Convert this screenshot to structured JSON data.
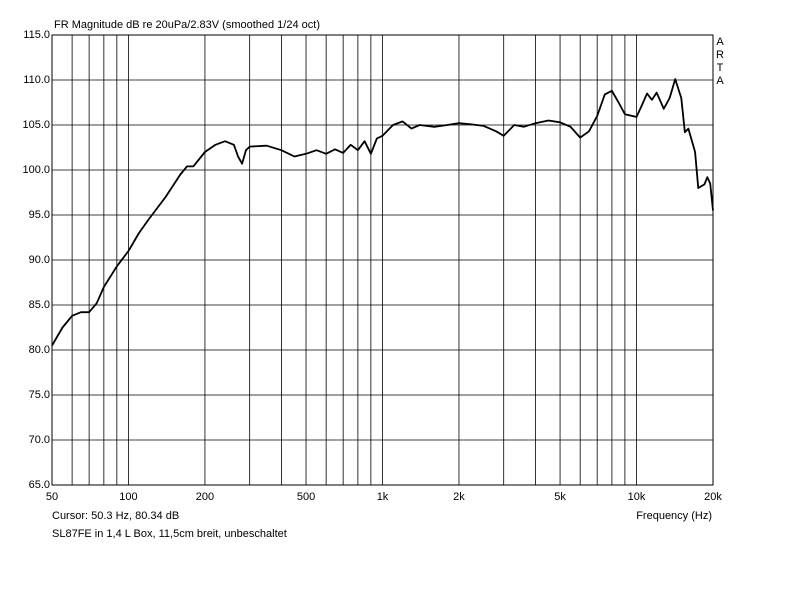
{
  "chart_data": {
    "type": "line",
    "title": "FR Magnitude dB re 20uPa/2.83V (smoothed 1/24 oct)",
    "watermark": [
      "A",
      "R",
      "T",
      "A"
    ],
    "cursor_text": "Cursor: 50.3 Hz, 80.34 dB",
    "x_label": "Frequency (Hz)",
    "caption": "SL87FE in 1,4 L Box, 11,5cm breit, unbeschaltet",
    "xscale": "log",
    "grid": true,
    "color": "#000000",
    "xlim": [
      50,
      20000
    ],
    "ylim": [
      65,
      115
    ],
    "xticks": [
      50,
      100,
      200,
      500,
      {
        "value": 1000,
        "label": "1k"
      },
      {
        "value": 2000,
        "label": "2k"
      },
      {
        "value": 5000,
        "label": "5k"
      },
      {
        "value": 10000,
        "label": "10k"
      },
      {
        "value": 20000,
        "label": "20k"
      }
    ],
    "xminorticks": [
      60,
      70,
      80,
      90,
      300,
      400,
      600,
      700,
      800,
      900,
      3000,
      4000,
      6000,
      7000,
      8000,
      9000
    ],
    "yticks": [
      {
        "value": 65,
        "label": "65.0"
      },
      {
        "value": 70,
        "label": "70.0"
      },
      {
        "value": 75,
        "label": "75.0"
      },
      {
        "value": 80,
        "label": "80.0"
      },
      {
        "value": 85,
        "label": "85.0"
      },
      {
        "value": 90,
        "label": "90.0"
      },
      {
        "value": 95,
        "label": "95.0"
      },
      {
        "value": 100,
        "label": "100.0"
      },
      {
        "value": 105,
        "label": "105.0"
      },
      {
        "value": 110,
        "label": "110.0"
      },
      {
        "value": 115,
        "label": "115.0"
      }
    ],
    "x": [
      50,
      55,
      60,
      65,
      70,
      75,
      80,
      90,
      100,
      110,
      120,
      140,
      160,
      170,
      180,
      200,
      220,
      240,
      260,
      270,
      280,
      290,
      300,
      350,
      400,
      450,
      500,
      550,
      600,
      650,
      700,
      750,
      800,
      850,
      900,
      950,
      1000,
      1100,
      1200,
      1300,
      1400,
      1600,
      1800,
      2000,
      2200,
      2500,
      2800,
      3000,
      3300,
      3600,
      4000,
      4500,
      5000,
      5500,
      6000,
      6500,
      7000,
      7500,
      8000,
      8500,
      9000,
      10000,
      10500,
      11000,
      11500,
      12000,
      12800,
      13500,
      14200,
      15000,
      15500,
      16000,
      17000,
      17500,
      18500,
      19000,
      19500,
      20000
    ],
    "values": [
      80.5,
      82.5,
      83.8,
      84.2,
      84.2,
      85.2,
      87,
      89.3,
      91,
      93,
      94.5,
      97,
      99.5,
      100.4,
      100.4,
      102,
      102.8,
      103.2,
      102.8,
      101.5,
      100.7,
      102.2,
      102.6,
      102.7,
      102.2,
      101.5,
      101.8,
      102.2,
      101.8,
      102.3,
      101.9,
      102.8,
      102.2,
      103.2,
      101.8,
      103.5,
      103.8,
      105,
      105.4,
      104.6,
      105,
      104.8,
      105,
      105.2,
      105.1,
      104.9,
      104.3,
      103.8,
      105,
      104.8,
      105.2,
      105.5,
      105.3,
      104.8,
      103.6,
      104.3,
      106,
      108.4,
      108.8,
      107.5,
      106.2,
      105.9,
      107.2,
      108.5,
      107.8,
      108.6,
      106.8,
      108,
      110.1,
      108,
      104.2,
      104.6,
      102,
      98,
      98.4,
      99.2,
      98.5,
      95.5
    ]
  }
}
